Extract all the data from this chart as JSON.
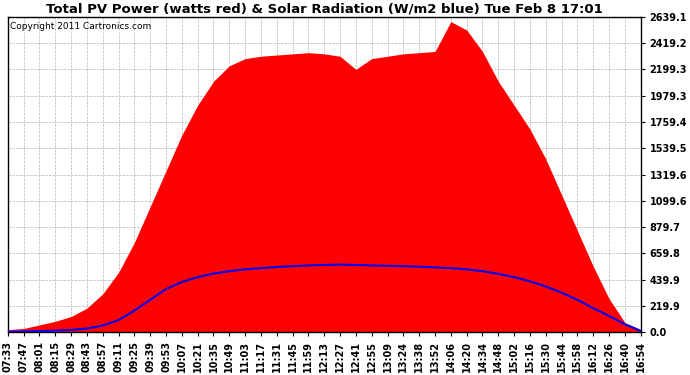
{
  "title": "Total PV Power (watts red) & Solar Radiation (W/m2 blue) Tue Feb 8 17:01",
  "copyright_text": "Copyright 2011 Cartronics.com",
  "ylim": [
    0.0,
    2639.1
  ],
  "ylabel_right_ticks": [
    0.0,
    219.9,
    439.9,
    659.8,
    879.7,
    1099.6,
    1319.6,
    1539.5,
    1759.4,
    1979.3,
    2199.3,
    2419.2,
    2639.1
  ],
  "background_color": "#ffffff",
  "grid_color": "#aaaaaa",
  "pv_color": "#ff0000",
  "solar_color": "#0000ee",
  "title_fontsize": 9.5,
  "copyright_fontsize": 6.5,
  "tick_fontsize": 7,
  "x_times": [
    "07:33",
    "07:47",
    "08:01",
    "08:15",
    "08:29",
    "08:43",
    "08:57",
    "09:11",
    "09:25",
    "09:39",
    "09:53",
    "10:07",
    "10:21",
    "10:35",
    "10:49",
    "11:03",
    "11:17",
    "11:31",
    "11:45",
    "11:59",
    "12:13",
    "12:27",
    "12:41",
    "12:55",
    "13:09",
    "13:24",
    "13:38",
    "13:52",
    "14:06",
    "14:20",
    "14:34",
    "14:48",
    "15:02",
    "15:16",
    "15:30",
    "15:44",
    "15:58",
    "16:12",
    "16:26",
    "16:40",
    "16:54"
  ],
  "pv_values": [
    20,
    30,
    60,
    90,
    130,
    200,
    320,
    500,
    750,
    1050,
    1350,
    1650,
    1900,
    2100,
    2230,
    2290,
    2310,
    2320,
    2330,
    2340,
    2330,
    2310,
    2200,
    2290,
    2310,
    2330,
    2340,
    2350,
    2600,
    2530,
    2350,
    2100,
    1900,
    1700,
    1450,
    1150,
    850,
    550,
    280,
    80,
    20
  ],
  "solar_values": [
    3,
    5,
    8,
    12,
    18,
    30,
    55,
    100,
    180,
    270,
    360,
    420,
    460,
    490,
    510,
    525,
    535,
    545,
    552,
    558,
    562,
    565,
    562,
    558,
    555,
    552,
    548,
    542,
    535,
    525,
    510,
    488,
    460,
    425,
    382,
    330,
    270,
    200,
    135,
    65,
    10
  ]
}
